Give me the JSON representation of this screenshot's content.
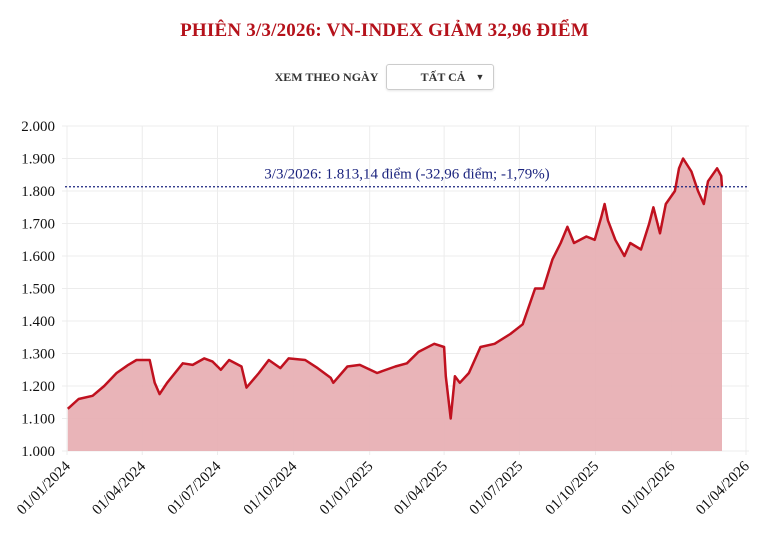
{
  "title": "PHIÊN 3/3/2026: VN-INDEX GIẢM 32,96 ĐIỂM",
  "filter": {
    "label": "XEM THEO NGÀY",
    "selected": "TẤT CẢ",
    "icon": "caret-down-icon"
  },
  "colors": {
    "line": "#c0111f",
    "area": "#e8b0b4",
    "reference": "#1a237e",
    "title": "#b5121b"
  },
  "chart_data": {
    "type": "area",
    "title": "PHIÊN 3/3/2026: VN-INDEX GIẢM 32,96 ĐIỂM",
    "xlabel": "",
    "ylabel": "",
    "ylim": [
      1000,
      2000
    ],
    "xlim": [
      "2024-01-01",
      "2026-04-01"
    ],
    "grid": true,
    "y_ticks": [
      "1.000",
      "1.100",
      "1.200",
      "1.300",
      "1.400",
      "1.500",
      "1.600",
      "1.700",
      "1.800",
      "1.900",
      "2.000"
    ],
    "x_ticks": [
      "01/01/2024",
      "01/04/2024",
      "01/07/2024",
      "01/10/2024",
      "01/01/2025",
      "01/04/2025",
      "01/07/2025",
      "01/10/2025",
      "01/01/2026",
      "01/04/2026"
    ],
    "reference_line": {
      "value": 1813.14,
      "label": "3/3/2026: 1.813,14 điểm (-32,96 điểm; -1,79%)"
    },
    "series": [
      {
        "x": [
          "2024-01-02",
          "2024-01-15",
          "2024-02-01",
          "2024-02-15",
          "2024-03-01",
          "2024-03-15",
          "2024-03-25",
          "2024-04-10",
          "2024-04-16",
          "2024-04-22",
          "2024-05-01",
          "2024-05-20",
          "2024-06-01",
          "2024-06-15",
          "2024-06-25",
          "2024-07-05",
          "2024-07-15",
          "2024-07-30",
          "2024-08-05",
          "2024-08-20",
          "2024-09-01",
          "2024-09-15",
          "2024-09-25",
          "2024-10-15",
          "2024-10-30",
          "2024-11-15",
          "2024-11-18",
          "2024-12-05",
          "2024-12-20",
          "2025-01-10",
          "2025-02-01",
          "2025-02-15",
          "2025-03-01",
          "2025-03-20",
          "2025-04-01",
          "2025-04-03",
          "2025-04-09",
          "2025-04-14",
          "2025-04-20",
          "2025-05-01",
          "2025-05-15",
          "2025-06-01",
          "2025-06-20",
          "2025-07-05",
          "2025-07-20",
          "2025-07-30",
          "2025-08-10",
          "2025-08-20",
          "2025-08-28",
          "2025-09-05",
          "2025-09-20",
          "2025-09-30",
          "2025-10-08",
          "2025-10-12",
          "2025-10-16",
          "2025-10-25",
          "2025-11-05",
          "2025-11-12",
          "2025-11-25",
          "2025-12-05",
          "2025-12-10",
          "2025-12-18",
          "2025-12-25",
          "2026-01-05",
          "2026-01-10",
          "2026-01-15",
          "2026-01-25",
          "2026-02-02",
          "2026-02-09",
          "2026-02-14",
          "2026-02-25",
          "2026-03-02",
          "2026-03-03"
        ],
        "values": [
          1130,
          1160,
          1170,
          1200,
          1240,
          1265,
          1280,
          1280,
          1210,
          1175,
          1210,
          1270,
          1265,
          1285,
          1275,
          1250,
          1280,
          1260,
          1195,
          1240,
          1280,
          1255,
          1285,
          1280,
          1255,
          1225,
          1210,
          1260,
          1265,
          1240,
          1260,
          1270,
          1305,
          1330,
          1320,
          1230,
          1100,
          1230,
          1210,
          1240,
          1320,
          1330,
          1360,
          1390,
          1500,
          1500,
          1590,
          1640,
          1690,
          1640,
          1660,
          1650,
          1720,
          1760,
          1710,
          1650,
          1600,
          1640,
          1620,
          1700,
          1750,
          1670,
          1760,
          1800,
          1870,
          1900,
          1860,
          1800,
          1760,
          1830,
          1870,
          1846.1,
          1813.14
        ]
      }
    ]
  }
}
